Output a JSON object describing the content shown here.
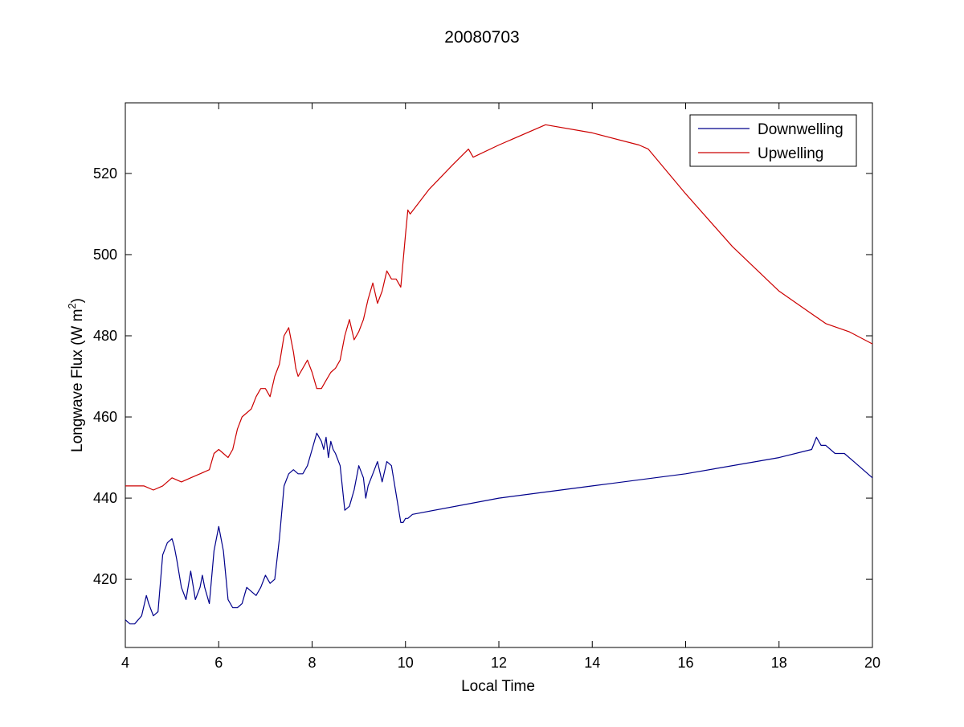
{
  "chart_data": {
    "type": "line",
    "title": "20080703",
    "xlabel": "Local Time",
    "ylabel": "Longwave Flux (W m",
    "ylabel_sup": "2",
    "ylabel_close": ")",
    "xlim": [
      4,
      20
    ],
    "ylim": [
      403.2,
      537.4
    ],
    "xticks": [
      4,
      6,
      8,
      10,
      12,
      14,
      16,
      18,
      20
    ],
    "yticks": [
      420,
      440,
      460,
      480,
      500,
      520
    ],
    "legend": "top-right",
    "grid": false,
    "series": [
      {
        "name": "Downwelling",
        "color": "#00008b",
        "x": [
          4.0,
          4.1,
          4.2,
          4.35,
          4.45,
          4.5,
          4.6,
          4.7,
          4.8,
          4.9,
          5.0,
          5.05,
          5.1,
          5.2,
          5.3,
          5.4,
          5.5,
          5.6,
          5.65,
          5.7,
          5.8,
          5.9,
          6.0,
          6.1,
          6.2,
          6.3,
          6.4,
          6.5,
          6.6,
          6.7,
          6.8,
          6.9,
          7.0,
          7.1,
          7.2,
          7.3,
          7.4,
          7.5,
          7.6,
          7.7,
          7.8,
          7.9,
          8.0,
          8.1,
          8.2,
          8.25,
          8.3,
          8.35,
          8.4,
          8.45,
          8.5,
          8.6,
          8.7,
          8.8,
          8.85,
          8.9,
          9.0,
          9.1,
          9.15,
          9.2,
          9.3,
          9.4,
          9.5,
          9.6,
          9.7,
          9.8,
          9.9,
          9.95,
          10.0,
          10.05,
          10.15,
          12.0,
          14.0,
          16.0,
          18.0,
          18.7,
          18.8,
          18.9,
          19.0,
          19.2,
          19.4,
          19.6,
          19.8,
          20.0
        ],
        "y": [
          410,
          409,
          409,
          411,
          416,
          414,
          411,
          412,
          426,
          429,
          430,
          428,
          425,
          418,
          415,
          422,
          415,
          418,
          421,
          418,
          414,
          427,
          433,
          427,
          415,
          413,
          413,
          414,
          418,
          417,
          416,
          418,
          421,
          419,
          420,
          430,
          443,
          446,
          447,
          446,
          446,
          448,
          452,
          456,
          454,
          452,
          455,
          450,
          454,
          452,
          451,
          448,
          437,
          438,
          440,
          442,
          448,
          445,
          440,
          443,
          446,
          449,
          444,
          449,
          448,
          441,
          434,
          434,
          435,
          435,
          436,
          440,
          443,
          446,
          450,
          452,
          455,
          453,
          453,
          451,
          451,
          449,
          447,
          445
        ]
      },
      {
        "name": "Upwelling",
        "color": "#cc0000",
        "x": [
          4.0,
          4.2,
          4.4,
          4.6,
          4.8,
          5.0,
          5.2,
          5.4,
          5.6,
          5.8,
          5.9,
          6.0,
          6.1,
          6.2,
          6.3,
          6.4,
          6.5,
          6.6,
          6.7,
          6.8,
          6.9,
          7.0,
          7.1,
          7.2,
          7.3,
          7.4,
          7.5,
          7.6,
          7.65,
          7.7,
          7.8,
          7.9,
          8.0,
          8.1,
          8.2,
          8.3,
          8.4,
          8.5,
          8.6,
          8.7,
          8.8,
          8.9,
          9.0,
          9.1,
          9.2,
          9.3,
          9.4,
          9.5,
          9.6,
          9.7,
          9.8,
          9.9,
          10.0,
          10.05,
          10.1,
          10.5,
          11.0,
          11.35,
          11.45,
          12.0,
          13.0,
          14.0,
          15.0,
          15.2,
          16.0,
          17.0,
          18.0,
          18.5,
          19.0,
          19.5,
          20.0
        ],
        "y": [
          443,
          443,
          443,
          442,
          443,
          445,
          444,
          445,
          446,
          447,
          451,
          452,
          451,
          450,
          452,
          457,
          460,
          461,
          462,
          465,
          467,
          467,
          465,
          470,
          473,
          480,
          482,
          476,
          472,
          470,
          472,
          474,
          471,
          467,
          467,
          469,
          471,
          472,
          474,
          480,
          484,
          479,
          481,
          484,
          489,
          493,
          488,
          491,
          496,
          494,
          494,
          492,
          505,
          511,
          510,
          516,
          522,
          526,
          524,
          527,
          532,
          530,
          527,
          526,
          515,
          502,
          491,
          487,
          483,
          481,
          478
        ]
      }
    ]
  }
}
